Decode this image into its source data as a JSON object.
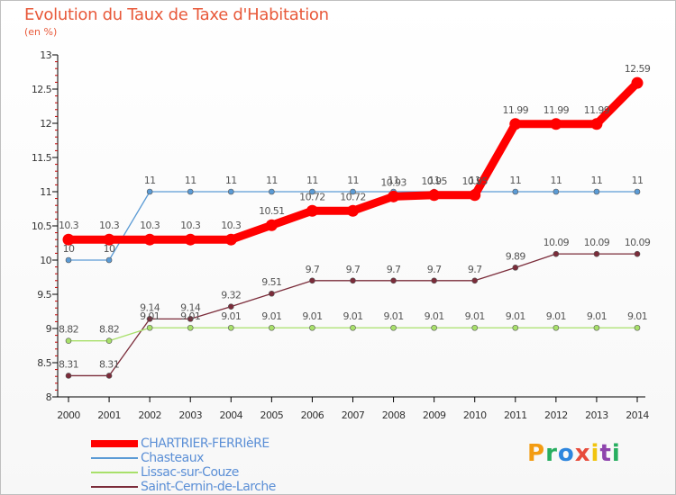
{
  "title": "Evolution du Taux de Taxe d'Habitation",
  "subtitle": "(en %)",
  "logo": {
    "letters": [
      "P",
      "r",
      "o",
      "x",
      "i",
      "t",
      "i"
    ],
    "colors": [
      "#f39c12",
      "#27ae60",
      "#2e86de",
      "#e74c3c",
      "#f1c40f",
      "#8e44ad",
      "#27ae60"
    ]
  },
  "chart_data": {
    "type": "line",
    "x": [
      2000,
      2001,
      2002,
      2003,
      2004,
      2005,
      2006,
      2007,
      2008,
      2009,
      2010,
      2011,
      2012,
      2013,
      2014
    ],
    "ylim": [
      8,
      13
    ],
    "yticks": [
      "8",
      "8.5",
      "9",
      "9.5",
      "10",
      "10.5",
      "11",
      "11.5",
      "12",
      "12.5",
      "13"
    ],
    "ytick_values": [
      8,
      8.5,
      9,
      9.5,
      10,
      10.5,
      11,
      11.5,
      12,
      12.5,
      13
    ],
    "series": [
      {
        "name": "CHARTRIER-FERRIèRE",
        "color": "#ff0000",
        "values": [
          10.3,
          10.3,
          10.3,
          10.3,
          10.3,
          10.51,
          10.72,
          10.72,
          10.93,
          10.95,
          10.95,
          11.99,
          11.99,
          11.99,
          12.59
        ],
        "labels": [
          "10.3",
          "10.3",
          "10.3",
          "10.3",
          "10.3",
          "10.51",
          "10.72",
          "10.72",
          "10.93",
          "10.95",
          "10.95",
          "11.99",
          "11.99",
          "11.99",
          "12.59"
        ]
      },
      {
        "name": "Chasteaux",
        "color": "#5b9bd5",
        "values": [
          10,
          10,
          11,
          11,
          11,
          11,
          11,
          11,
          11,
          11,
          11,
          11,
          11,
          11,
          11
        ],
        "labels": [
          "10",
          "10",
          "11",
          "11",
          "11",
          "11",
          "11",
          "11",
          "11",
          "11",
          "11",
          "11",
          "11",
          "11",
          "11"
        ]
      },
      {
        "name": "Lissac-sur-Couze",
        "color": "#a8e06a",
        "values": [
          8.82,
          8.82,
          9.01,
          9.01,
          9.01,
          9.01,
          9.01,
          9.01,
          9.01,
          9.01,
          9.01,
          9.01,
          9.01,
          9.01,
          9.01
        ],
        "labels": [
          "8.82",
          "8.82",
          "9.01",
          "9.01",
          "9.01",
          "9.01",
          "9.01",
          "9.01",
          "9.01",
          "9.01",
          "9.01",
          "9.01",
          "9.01",
          "9.01",
          "9.01"
        ]
      },
      {
        "name": "Saint-Cernin-de-Larche",
        "color": "#7b2c3a",
        "values": [
          8.31,
          8.31,
          9.14,
          9.14,
          9.32,
          9.51,
          9.7,
          9.7,
          9.7,
          9.7,
          9.7,
          9.89,
          10.09,
          10.09,
          10.09
        ],
        "labels": [
          "8.31",
          "8.31",
          "9.14",
          "9.14",
          "9.32",
          "9.51",
          "9.7",
          "9.7",
          "9.7",
          "9.7",
          "9.7",
          "9.89",
          "10.09",
          "10.09",
          "10.09"
        ]
      }
    ],
    "grid": false,
    "legend": "bottom-left"
  }
}
